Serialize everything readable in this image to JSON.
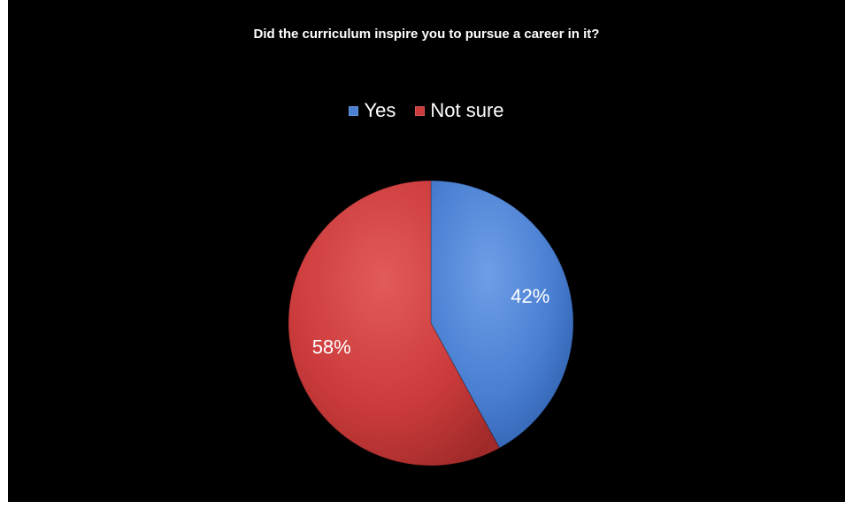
{
  "chart_data": {
    "type": "pie",
    "title": "Did the curriculum inspire you to pursue a career in it?",
    "categories": [
      "Yes",
      "Not sure"
    ],
    "values": [
      42,
      58
    ],
    "labels": [
      "42%",
      "58%"
    ],
    "colors": [
      "#4a7fd1",
      "#cc3b3b"
    ],
    "legend_position": "top"
  }
}
